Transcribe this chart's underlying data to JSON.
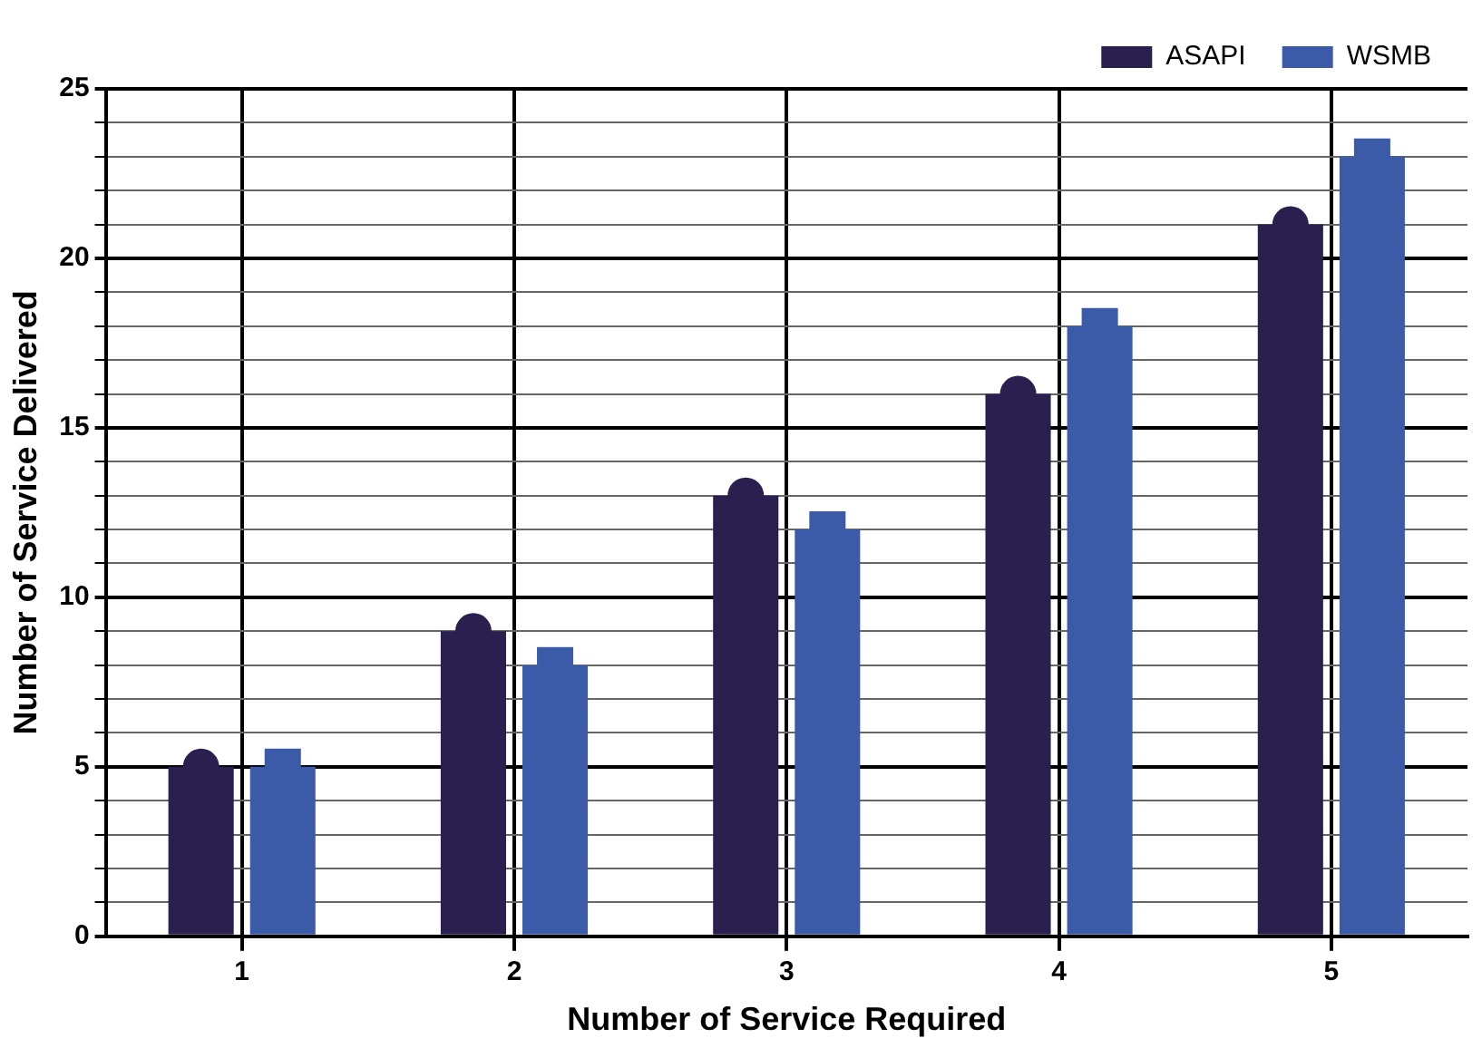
{
  "chart_data": {
    "type": "bar",
    "xlabel": "Number of Service Required",
    "ylabel": "Number of Service Delivered",
    "categories": [
      "1",
      "2",
      "3",
      "4",
      "5"
    ],
    "series": [
      {
        "name": "ASAPI",
        "color": "#2a1f4f",
        "values": [
          5,
          9,
          13,
          16,
          21
        ]
      },
      {
        "name": "WSMB",
        "color": "#3b5aa8",
        "values": [
          5,
          8,
          12,
          18,
          23
        ]
      },
      {
        "type": "scatter",
        "color": "#2a1f4f",
        "marker": "circle",
        "x": [
          "1",
          "2",
          "3",
          "4",
          "5"
        ],
        "values": [
          5,
          9,
          13,
          16,
          21
        ]
      },
      {
        "type": "scatter",
        "color": "#3b5aa8",
        "marker": "square",
        "x": [
          "1",
          "2",
          "3",
          "4",
          "5"
        ],
        "values": [
          5,
          8,
          12,
          18,
          23
        ]
      }
    ],
    "ylim": [
      0,
      25
    ],
    "yticks": [
      0,
      {
        "value": 1,
        "label": null
      },
      {
        "value": 2,
        "label": null
      },
      {
        "value": 3,
        "label": null
      },
      {
        "value": 4,
        "label": null
      },
      5,
      {
        "value": 6,
        "label": null
      },
      {
        "value": 7,
        "label": null
      },
      {
        "value": 8,
        "label": null
      },
      {
        "value": 9,
        "label": null
      },
      10,
      {
        "value": 11,
        "label": null
      },
      {
        "value": 12,
        "label": null
      },
      {
        "value": 13,
        "label": null
      },
      {
        "value": 14,
        "label": null
      },
      15,
      {
        "value": 16,
        "label": null
      },
      {
        "value": 17,
        "label": null
      },
      {
        "value": 18,
        "label": null
      },
      {
        "value": 19,
        "label": null
      },
      20,
      {
        "value": 21,
        "label": null
      },
      {
        "value": 22,
        "label": null
      },
      {
        "value": 23,
        "label": null
      },
      {
        "value": 24,
        "label": null
      },
      25
    ],
    "grid": true,
    "legend": "top right"
  }
}
